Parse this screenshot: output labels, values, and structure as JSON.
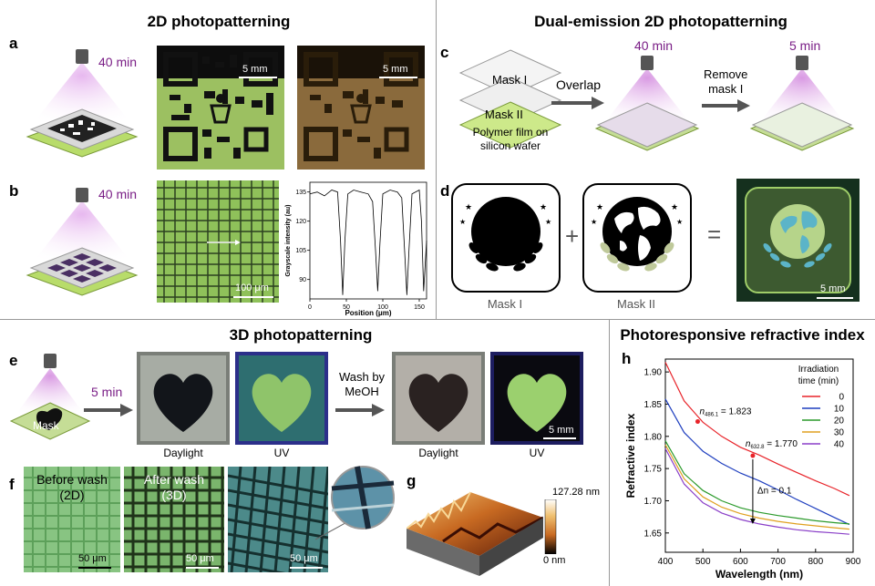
{
  "sections": {
    "s2d": "2D photopatterning",
    "dual": "Dual-emission 2D photopatterning",
    "s3d": "3D photopatterning",
    "refr": "Photoresponsive refractive index"
  },
  "panels": {
    "a": "a",
    "b": "b",
    "c": "c",
    "d": "d",
    "e": "e",
    "f": "f",
    "g": "g",
    "h": "h"
  },
  "times": {
    "a": "40 min",
    "b": "40 min",
    "c1": "40 min",
    "c2": "5 min",
    "e": "5 min"
  },
  "scales": {
    "a1": "5 mm",
    "a2": "5 mm",
    "b": "100 μm",
    "d": "5 mm",
    "e": "5 mm",
    "f1": "50 μm",
    "f2": "50 μm",
    "f3": "50 μm"
  },
  "panel_c": {
    "mask1": "Mask I",
    "mask2": "Mask II",
    "film_line1": "Polymer film on",
    "film_line2": "silicon wafer",
    "overlap": "Overlap",
    "remove_line1": "Remove",
    "remove_line2": "mask I"
  },
  "panel_d": {
    "mask1": "Mask I",
    "mask2": "Mask II",
    "plus": "+",
    "equals": "="
  },
  "panel_e": {
    "mask": "Mask",
    "wash_line1": "Wash by",
    "wash_line2": "MeOH",
    "daylight1": "Daylight",
    "uv1": "UV",
    "daylight2": "Daylight",
    "uv2": "UV"
  },
  "panel_f": {
    "before_line1": "Before wash",
    "before_line2": "(2D)",
    "after_line1": "After wash",
    "after_line2": "(3D)"
  },
  "panel_g": {
    "colorbar_max": "127.28 nm",
    "colorbar_min": "0 nm"
  },
  "chart_data": [
    {
      "type": "line",
      "panel": "b",
      "xlabel": "Position (μm)",
      "ylabel": "Grayscale intensity (au)",
      "xlim": [
        0,
        160
      ],
      "ylim": [
        80,
        140
      ],
      "xticks": [
        0,
        50,
        100,
        150
      ],
      "yticks": [
        90,
        105,
        120,
        135
      ],
      "series": [
        {
          "x": [
            0,
            10,
            20,
            30,
            38,
            42,
            45,
            48,
            52,
            60,
            70,
            80,
            86,
            90,
            93,
            96,
            100,
            110,
            120,
            126,
            130,
            133,
            136,
            140,
            150,
            153,
            156,
            160
          ],
          "y": [
            134,
            135,
            133,
            136,
            135,
            110,
            82,
            110,
            134,
            136,
            135,
            134,
            130,
            105,
            84,
            108,
            134,
            136,
            135,
            132,
            104,
            82,
            106,
            134,
            136,
            120,
            84,
            110
          ]
        }
      ]
    },
    {
      "type": "line",
      "panel": "h",
      "xlabel": "Wavelength (nm)",
      "ylabel": "Refractive index",
      "xlim": [
        400,
        900
      ],
      "ylim": [
        1.62,
        1.92
      ],
      "xticks": [
        400,
        500,
        600,
        700,
        800,
        900
      ],
      "yticks": [
        1.65,
        1.7,
        1.75,
        1.8,
        1.85,
        1.9
      ],
      "legend_title_line1": "Irradiation",
      "legend_title_line2": "time (min)",
      "legend_position": "top-right",
      "series": [
        {
          "name": "0",
          "color": "#e8242a",
          "x": [
            400,
            450,
            500,
            550,
            600,
            650,
            700,
            750,
            800,
            850,
            890
          ],
          "y": [
            1.915,
            1.855,
            1.822,
            1.8,
            1.783,
            1.771,
            1.757,
            1.744,
            1.731,
            1.719,
            1.708
          ]
        },
        {
          "name": "10",
          "color": "#1f3fbf",
          "x": [
            400,
            450,
            500,
            550,
            600,
            650,
            700,
            750,
            800,
            850,
            890
          ],
          "y": [
            1.858,
            1.806,
            1.777,
            1.758,
            1.743,
            1.731,
            1.717,
            1.702,
            1.688,
            1.674,
            1.663
          ]
        },
        {
          "name": "20",
          "color": "#2b9a2b",
          "x": [
            400,
            450,
            500,
            550,
            600,
            650,
            700,
            750,
            800,
            850,
            890
          ],
          "y": [
            1.793,
            1.742,
            1.716,
            1.7,
            1.689,
            1.682,
            1.677,
            1.673,
            1.669,
            1.666,
            1.664
          ]
        },
        {
          "name": "30",
          "color": "#e0a020",
          "x": [
            400,
            450,
            500,
            550,
            600,
            650,
            700,
            750,
            800,
            850,
            890
          ],
          "y": [
            1.787,
            1.734,
            1.706,
            1.69,
            1.68,
            1.673,
            1.668,
            1.664,
            1.661,
            1.658,
            1.656
          ]
        },
        {
          "name": "40",
          "color": "#8a3fc8",
          "x": [
            400,
            450,
            500,
            550,
            600,
            650,
            700,
            750,
            800,
            850,
            890
          ],
          "y": [
            1.781,
            1.726,
            1.697,
            1.681,
            1.671,
            1.664,
            1.659,
            1.655,
            1.652,
            1.65,
            1.648
          ]
        }
      ],
      "annotations": [
        {
          "text_main": "n",
          "text_sub": "486.1",
          "text_value": " = 1.823",
          "x": 486.1,
          "y": 1.823
        },
        {
          "text_main": "n",
          "text_sub": "632.8",
          "text_value": " = 1.770",
          "x": 632.8,
          "y": 1.77
        },
        {
          "text": "Δn = 0.1",
          "x": 632.8
        }
      ]
    }
  ]
}
